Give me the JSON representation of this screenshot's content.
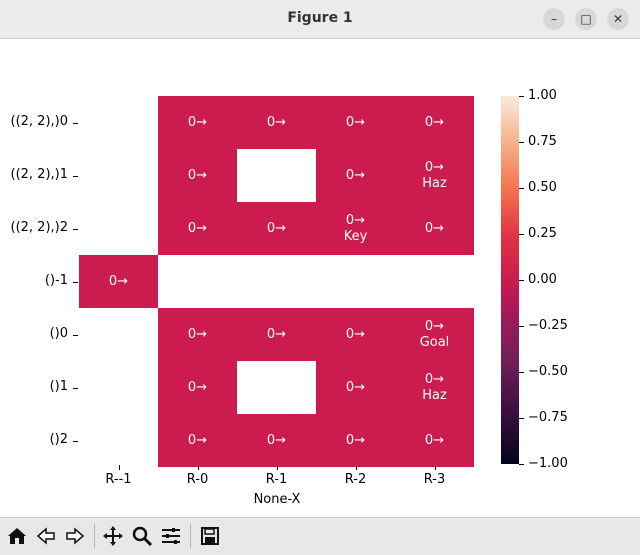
{
  "window": {
    "title": "Figure 1",
    "minimize_icon": "minimize-icon",
    "maximize_icon": "maximize-icon",
    "close_icon": "close-icon"
  },
  "toolbar": {
    "buttons": [
      "home-icon",
      "back-arrow-icon",
      "forward-arrow-icon",
      "pan-icon",
      "zoom-icon",
      "configure-subplots-icon",
      "save-icon"
    ]
  },
  "chart_data": {
    "type": "heatmap",
    "xlabel": "None-X",
    "x_tick_labels": [
      "R--1",
      "R-0",
      "R-1",
      "R-2",
      "R-3"
    ],
    "y_tick_labels": [
      "((2, 2),)0",
      "((2, 2),)1",
      "((2, 2),)2",
      "()-1",
      "()0",
      "()1",
      "()2"
    ],
    "values": [
      [
        null,
        0,
        0,
        0,
        0
      ],
      [
        null,
        0,
        null,
        0,
        0
      ],
      [
        null,
        0,
        0,
        0,
        0
      ],
      [
        0,
        null,
        null,
        null,
        null
      ],
      [
        null,
        0,
        0,
        0,
        0
      ],
      [
        null,
        0,
        null,
        0,
        0
      ],
      [
        null,
        0,
        0,
        0,
        0
      ]
    ],
    "annotations": [
      [
        null,
        "0→",
        "0→",
        "0→",
        "0→"
      ],
      [
        null,
        "0→",
        null,
        "0→",
        "0→\nHaz"
      ],
      [
        null,
        "0→",
        "0→",
        "0→\nKey",
        "0→"
      ],
      [
        "0→",
        null,
        null,
        null,
        null
      ],
      [
        null,
        "0→",
        "0→",
        "0→",
        "0→\nGoal"
      ],
      [
        null,
        "0→",
        null,
        "0→",
        "0→\nHaz"
      ],
      [
        null,
        "0→",
        "0→",
        "0→",
        "0→"
      ]
    ],
    "colorbar": {
      "range": [
        -1.0,
        1.0
      ],
      "ticks": [
        "1.00",
        "0.75",
        "0.50",
        "0.25",
        "0.00",
        "−0.25",
        "−0.50",
        "−0.75",
        "−1.00"
      ],
      "colormap": "rocket",
      "zero_color": "#cb1b4f"
    }
  }
}
